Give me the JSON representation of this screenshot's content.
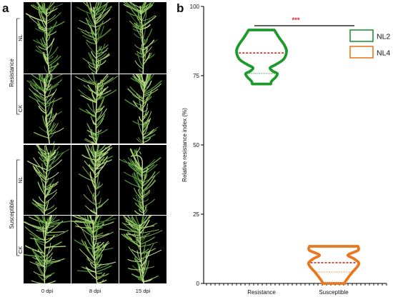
{
  "figure": {
    "panel_a": {
      "label": "a",
      "groups": [
        {
          "name": "Resistance",
          "rows": [
            "NL",
            "CK"
          ]
        },
        {
          "name": "Susceptible",
          "rows": [
            "NL",
            "CK"
          ]
        }
      ],
      "columns": [
        "0 dpi",
        "8 dpi",
        "15 dpi"
      ]
    },
    "panel_b": {
      "label": "b"
    }
  },
  "chart_data": {
    "type": "violin",
    "categories": [
      "Resistance",
      "Susceptible"
    ],
    "series": [
      {
        "name": "NL2",
        "category_index": 0,
        "color": "#1e9a2c",
        "min": 72,
        "q1": 75.8,
        "median": 83.2,
        "max": 91.5
      },
      {
        "name": "NL4",
        "category_index": 1,
        "color": "#e8781f",
        "min": 0,
        "q1": 4.1,
        "median": 7.5,
        "max": 13.4
      }
    ],
    "ylabel": "Relative resistance index (%)",
    "ylim": [
      0,
      100
    ],
    "yticks": [
      0,
      25,
      50,
      75,
      100
    ],
    "median_line_color": "#d8261c",
    "significance": {
      "between": [
        0,
        1
      ],
      "label": "***",
      "color": "#e8202a"
    },
    "legend": "top-right",
    "grid": false
  }
}
